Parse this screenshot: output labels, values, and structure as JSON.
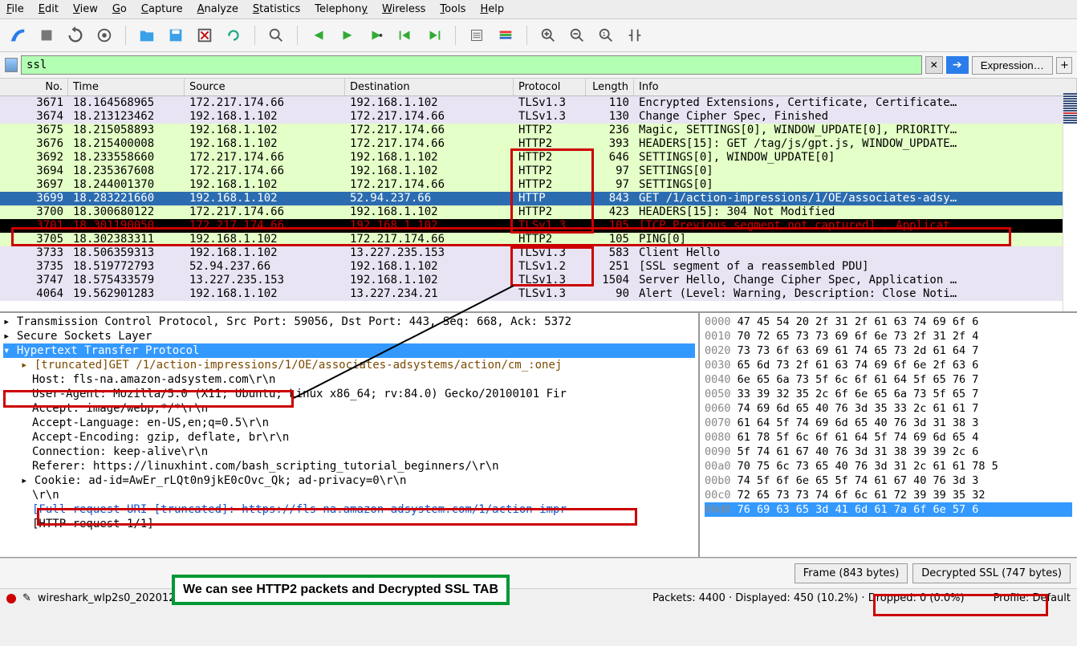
{
  "menu": [
    "File",
    "Edit",
    "View",
    "Go",
    "Capture",
    "Analyze",
    "Statistics",
    "Telephony",
    "Wireless",
    "Tools",
    "Help"
  ],
  "menu_accel": [
    "F",
    "E",
    "V",
    "G",
    "C",
    "A",
    "S",
    "T",
    "W",
    "T",
    "H"
  ],
  "filter": {
    "value": "ssl",
    "expression_label": "Expression…"
  },
  "columns": {
    "no": "No.",
    "time": "Time",
    "source": "Source",
    "destination": "Destination",
    "protocol": "Protocol",
    "length": "Length",
    "info": "Info"
  },
  "row_colors": {
    "lavender": "#e8e4f3",
    "green": "#e4ffc7",
    "selected_bg": "#2b6cb0",
    "selected_fg": "#ffffff",
    "black_bg": "#000000",
    "red_fg": "#cc0000"
  },
  "packets": [
    {
      "no": "3671",
      "time": "18.164568965",
      "src": "172.217.174.66",
      "dst": "192.168.1.102",
      "proto": "TLSv1.3",
      "len": "110",
      "info": "Encrypted Extensions, Certificate, Certificate…",
      "style": "lavender"
    },
    {
      "no": "3674",
      "time": "18.213123462",
      "src": "192.168.1.102",
      "dst": "172.217.174.66",
      "proto": "TLSv1.3",
      "len": "130",
      "info": "Change Cipher Spec, Finished",
      "style": "lavender"
    },
    {
      "no": "3675",
      "time": "18.215058893",
      "src": "192.168.1.102",
      "dst": "172.217.174.66",
      "proto": "HTTP2",
      "len": "236",
      "info": "Magic, SETTINGS[0], WINDOW_UPDATE[0], PRIORITY…",
      "style": "green"
    },
    {
      "no": "3676",
      "time": "18.215400008",
      "src": "192.168.1.102",
      "dst": "172.217.174.66",
      "proto": "HTTP2",
      "len": "393",
      "info": "HEADERS[15]: GET /tag/js/gpt.js, WINDOW_UPDATE…",
      "style": "green"
    },
    {
      "no": "3692",
      "time": "18.233558660",
      "src": "172.217.174.66",
      "dst": "192.168.1.102",
      "proto": "HTTP2",
      "len": "646",
      "info": "SETTINGS[0], WINDOW_UPDATE[0]",
      "style": "green"
    },
    {
      "no": "3694",
      "time": "18.235367608",
      "src": "172.217.174.66",
      "dst": "192.168.1.102",
      "proto": "HTTP2",
      "len": "97",
      "info": "SETTINGS[0]",
      "style": "green"
    },
    {
      "no": "3697",
      "time": "18.244001370",
      "src": "192.168.1.102",
      "dst": "172.217.174.66",
      "proto": "HTTP2",
      "len": "97",
      "info": "SETTINGS[0]",
      "style": "green"
    },
    {
      "no": "3699",
      "time": "18.283221660",
      "src": "192.168.1.102",
      "dst": "52.94.237.66",
      "proto": "HTTP",
      "len": "843",
      "info": "GET /1/action-impressions/1/OE/associates-adsy…",
      "style": "selected"
    },
    {
      "no": "3700",
      "time": "18.300680122",
      "src": "172.217.174.66",
      "dst": "192.168.1.102",
      "proto": "HTTP2",
      "len": "423",
      "info": "HEADERS[15]: 304 Not Modified",
      "style": "green"
    },
    {
      "no": "3701",
      "time": "18.301190050",
      "src": "172.217.174.66",
      "dst": "192.168.1.102",
      "proto": "TLSv1.3",
      "len": "105",
      "info": "[TCP Previous segment not captured] , Applicat…",
      "style": "blackred"
    },
    {
      "no": "3705",
      "time": "18.302383311",
      "src": "192.168.1.102",
      "dst": "172.217.174.66",
      "proto": "HTTP2",
      "len": "105",
      "info": "PING[0]",
      "style": "green"
    },
    {
      "no": "3733",
      "time": "18.506359313",
      "src": "192.168.1.102",
      "dst": "13.227.235.153",
      "proto": "TLSv1.3",
      "len": "583",
      "info": "Client Hello",
      "style": "lavender"
    },
    {
      "no": "3735",
      "time": "18.519772793",
      "src": "52.94.237.66",
      "dst": "192.168.1.102",
      "proto": "TLSv1.2",
      "len": "251",
      "info": "[SSL segment of a reassembled PDU]",
      "style": "lavender"
    },
    {
      "no": "3747",
      "time": "18.575433579",
      "src": "13.227.235.153",
      "dst": "192.168.1.102",
      "proto": "TLSv1.3",
      "len": "1504",
      "info": "Server Hello, Change Cipher Spec, Application …",
      "style": "lavender"
    },
    {
      "no": "4064",
      "time": "19.562901283",
      "src": "192.168.1.102",
      "dst": "13.227.234.21",
      "proto": "TLSv1.3",
      "len": "90",
      "info": "Alert (Level: Warning, Description: Close Noti…",
      "style": "lavender"
    }
  ],
  "details": {
    "l0": "Transmission Control Protocol, Src Port: 59056, Dst Port: 443, Seq: 668, Ack: 5372",
    "l1": "Secure Sockets Layer",
    "l2": "Hypertext Transfer Protocol",
    "l3": "[truncated]GET /1/action-impressions/1/OE/associates-adsystems/action/cm_:onej",
    "l4": "Host: fls-na.amazon-adsystem.com\\r\\n",
    "l5": "User-Agent: Mozilla/5.0 (X11; Ubuntu; Linux x86_64; rv:84.0) Gecko/20100101 Fir",
    "l6": "Accept: image/webp,*/*\\r\\n",
    "l7": "Accept-Language: en-US,en;q=0.5\\r\\n",
    "l8": "Accept-Encoding: gzip, deflate, br\\r\\n",
    "l9": "Connection: keep-alive\\r\\n",
    "l10": "Referer: https://linuxhint.com/bash_scripting_tutorial_beginners/\\r\\n",
    "l11": "Cookie: ad-id=AwEr_rLQt0n9jkE0cOvc_Qk; ad-privacy=0\\r\\n",
    "l12": "\\r\\n",
    "l13": "[Full request URI [truncated]: https://fls-na.amazon-adsystem.com/1/action-impr",
    "l14": "[HTTP request 1/1]"
  },
  "hex": {
    "rows": [
      {
        "off": "0000",
        "hex": "47 45 54 20 2f 31 2f 61",
        "asc": "63 74 69 6f 6"
      },
      {
        "off": "0010",
        "hex": "70 72 65 73 73 69 6f 6e",
        "asc": "73 2f 31 2f 4"
      },
      {
        "off": "0020",
        "hex": "73 73 6f 63 69 61 74 65",
        "asc": "73 2d 61 64 7"
      },
      {
        "off": "0030",
        "hex": "65 6d 73 2f 61 63 74 69",
        "asc": "6f 6e 2f 63 6"
      },
      {
        "off": "0040",
        "hex": "6e 65 6a 73 5f 6c 6f 61",
        "asc": "64 5f 65 76 7"
      },
      {
        "off": "0050",
        "hex": "33 39 32 35 2c 6f 6e 65",
        "asc": "6a 73 5f 65 7"
      },
      {
        "off": "0060",
        "hex": "74 69 6d 65 40 76 3d 35",
        "asc": "33 2c 61 61 7"
      },
      {
        "off": "0070",
        "hex": "61 64 5f 74 69 6d 65 40",
        "asc": "76 3d 31 38 3"
      },
      {
        "off": "0080",
        "hex": "61 78 5f 6c 6f 61 64 5f",
        "asc": "74 69 6d 65 4"
      },
      {
        "off": "0090",
        "hex": "5f 74 61 67 40 76 3d 31",
        "asc": "38 39 39 2c 6"
      },
      {
        "off": "00a0",
        "hex": "70 75 6c 73 65 40 76 3d 31",
        "asc": "2c 61 61 78 5"
      },
      {
        "off": "00b0",
        "hex": "74 5f 6f 6e 65 5f 74 61",
        "asc": "67 40 76 3d 3"
      },
      {
        "off": "00c0",
        "hex": "72 65 73 73 74 6f 6c 61",
        "asc": "72 39 39 35 32"
      },
      {
        "off": "00d0",
        "hex": "76 69 63 65 3d 41 6d 61",
        "asc": "7a 6f 6e 57 6",
        "hl": true
      }
    ]
  },
  "tabs": {
    "frame": "Frame (843 bytes)",
    "decrypted": "Decrypted SSL (747 bytes)"
  },
  "status": {
    "file": "wireshark_wlp2s0_20201220213536_Cpg4H3.pcapng",
    "packets": "Packets: 4400 · Displayed: 450 (10.2%) · Dropped: 0 (0.0%)",
    "profile": "Profile: Default"
  },
  "annotation": "We can see HTTP2 packets and Decrypted SSL TAB",
  "icons": {
    "fin": "#2b7de9",
    "stop": "#666",
    "restart": "#555",
    "options": "#555",
    "folder": "#3aa0e8",
    "save": "#3aa0e8"
  }
}
